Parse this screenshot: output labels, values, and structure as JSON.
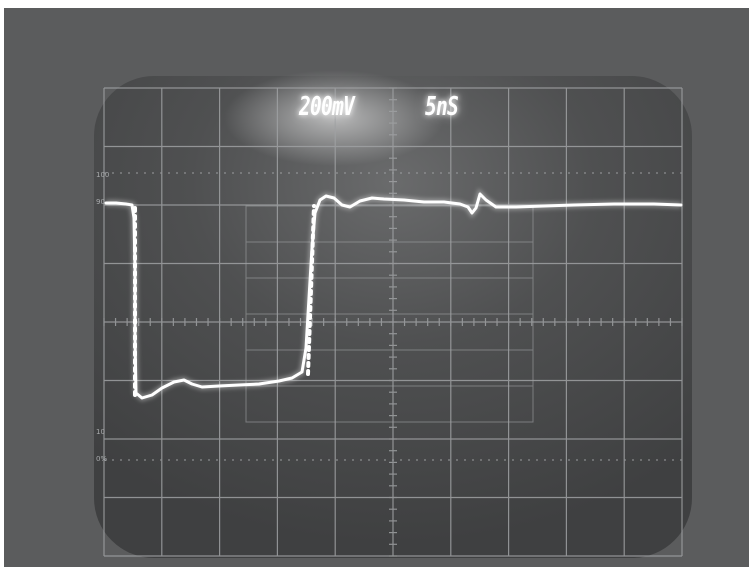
{
  "screen": {
    "volts_per_div": "200mV",
    "time_per_div": "5nS"
  },
  "graticule": {
    "left_labels": [
      "100",
      "90",
      "10",
      "0%"
    ]
  },
  "colors": {
    "background": "#5b5c5d",
    "screen": "#4c4d4e",
    "grid": "#9fa1a3",
    "trace": "#ffffff",
    "readout": "#ffffff"
  }
}
